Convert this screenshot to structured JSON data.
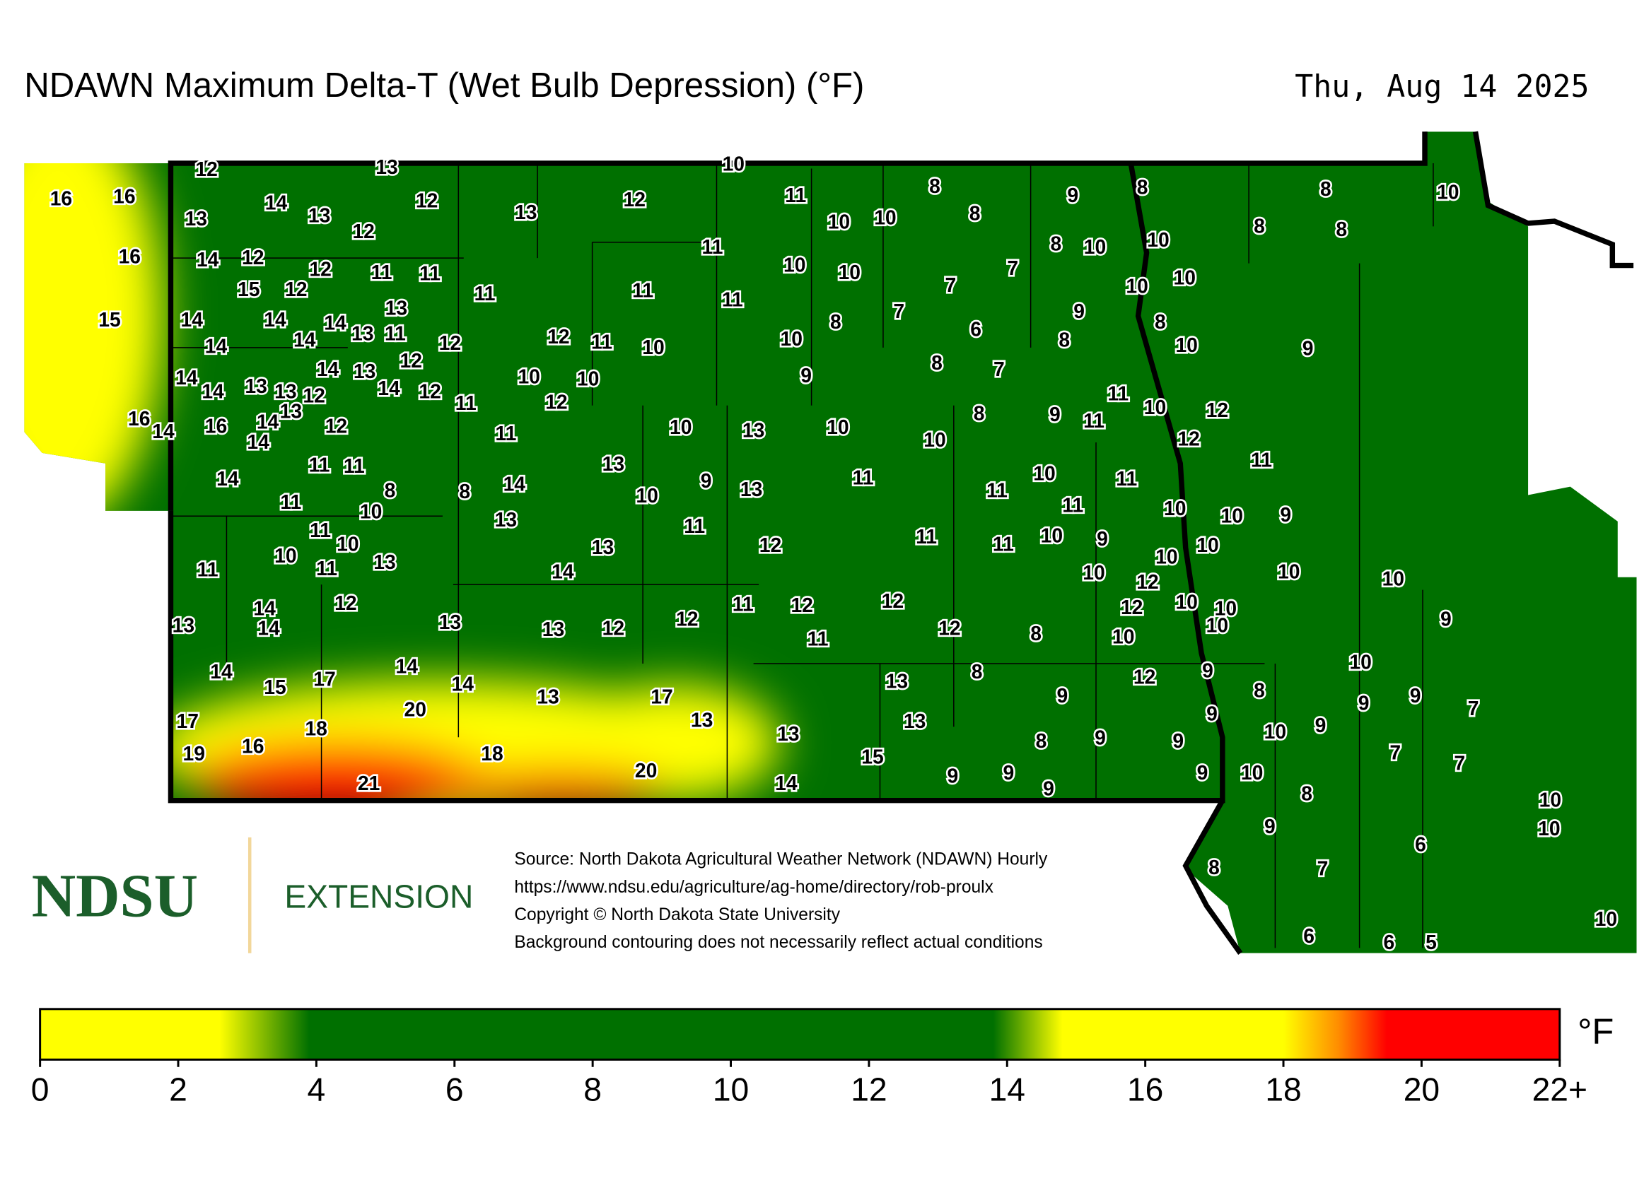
{
  "header": {
    "title": "NDAWN Maximum Delta-T (Wet Bulb Depression) (°F)",
    "date": "Thu, Aug 14 2025"
  },
  "stations": [
    12,
    13,
    10,
    16,
    16,
    13,
    14,
    13,
    12,
    12,
    13,
    12,
    11,
    10,
    10,
    8,
    8,
    9,
    8,
    8,
    10,
    8,
    8,
    16,
    14,
    12,
    12,
    11,
    11,
    15,
    12,
    11,
    11,
    10,
    10,
    11,
    11,
    7,
    7,
    8,
    10,
    10,
    10,
    10,
    15,
    14,
    14,
    14,
    13,
    14,
    14,
    13,
    11,
    12,
    12,
    11,
    10,
    10,
    8,
    7,
    6,
    9,
    8,
    8,
    10,
    9,
    14,
    14,
    13,
    13,
    12,
    14,
    13,
    12,
    14,
    12,
    11,
    10,
    10,
    12,
    9,
    8,
    7,
    11,
    10,
    12,
    16,
    14,
    16,
    14,
    13,
    14,
    12,
    11,
    10,
    13,
    10,
    10,
    8,
    9,
    11,
    12,
    11,
    14,
    11,
    11,
    13,
    8,
    8,
    14,
    10,
    9,
    13,
    11,
    11,
    10,
    11,
    11,
    10,
    13,
    11,
    10,
    10,
    9,
    11,
    10,
    10,
    13,
    11,
    11,
    13,
    11,
    12,
    11,
    11,
    10,
    9,
    10,
    10,
    14,
    10,
    12,
    10,
    10,
    14,
    14,
    12,
    13,
    13,
    13,
    12,
    12,
    11,
    12,
    11,
    12,
    12,
    8,
    10,
    12,
    10,
    10,
    10,
    9,
    14,
    15,
    17,
    14,
    14,
    13,
    17,
    13,
    13,
    8,
    9,
    12,
    9,
    10,
    8,
    9,
    9,
    7,
    17,
    19,
    16,
    18,
    20,
    18,
    13,
    13,
    9,
    10,
    9,
    7,
    7,
    21,
    20,
    14,
    15,
    9,
    8,
    9,
    9,
    9,
    9,
    9,
    10,
    8,
    10,
    10,
    9,
    6,
    8,
    7,
    10,
    6,
    6,
    5
  ],
  "footer": {
    "logo": "NDSU",
    "logo_sub": "EXTENSION",
    "notes": [
      "Source: North Dakota Agricultural Weather Network (NDAWN) Hourly",
      "https://www.ndsu.edu/agriculture/ag-home/directory/rob-proulx",
      "Copyright © North Dakota State University",
      "Background contouring does not necessarily reflect actual conditions"
    ]
  },
  "colorbar": {
    "unit": "°F",
    "range": [
      0,
      22
    ],
    "ticks": [
      0,
      2,
      4,
      6,
      8,
      10,
      12,
      14,
      16,
      18,
      20,
      {
        "value": 22,
        "label": "22+"
      }
    ],
    "stops": [
      {
        "value": 0,
        "color": "#ffff00"
      },
      {
        "value": 2.6,
        "color": "#ffff00"
      },
      {
        "value": 3.9,
        "color": "#007000"
      },
      {
        "value": 13.8,
        "color": "#007000"
      },
      {
        "value": 14.8,
        "color": "#ffff00"
      },
      {
        "value": 18,
        "color": "#ffff00"
      },
      {
        "value": 18.8,
        "color": "#ff8c00"
      },
      {
        "value": 19.5,
        "color": "#ff0000"
      },
      {
        "value": 22,
        "color": "#ff0000"
      }
    ]
  }
}
